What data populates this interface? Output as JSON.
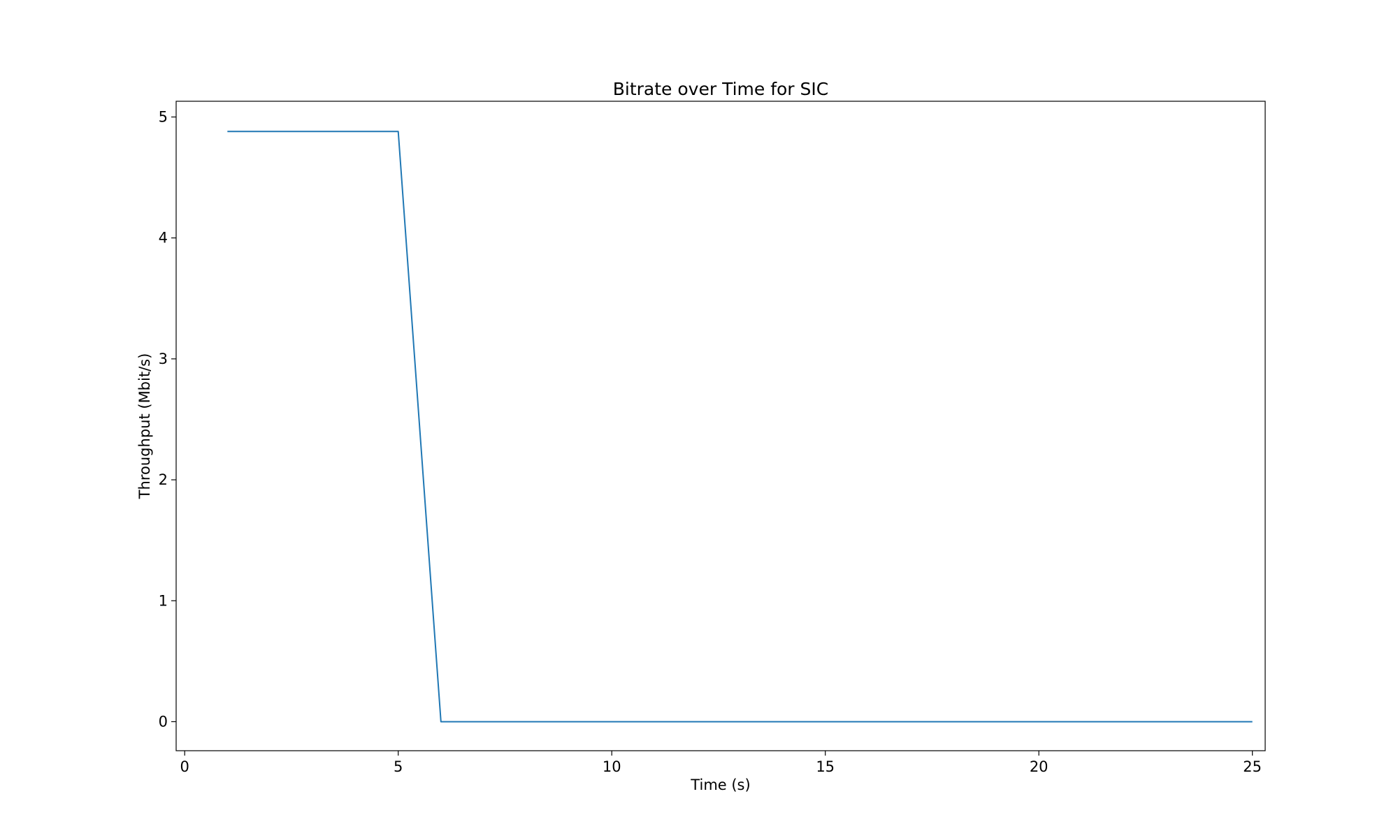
{
  "chart_data": {
    "type": "line",
    "title": "Bitrate over Time for SIC",
    "xlabel": "Time (s)",
    "ylabel": "Throughput (Mbit/s)",
    "xlim": [
      -0.2,
      25.3
    ],
    "ylim": [
      -0.24,
      5.13
    ],
    "xticks": [
      0,
      5,
      10,
      15,
      20,
      25
    ],
    "yticks": [
      0,
      1,
      2,
      3,
      4,
      5
    ],
    "grid": false,
    "series": [
      {
        "color": "#1f77b4",
        "x": [
          1,
          2,
          3,
          4,
          5,
          6,
          7,
          8,
          9,
          10,
          11,
          12,
          13,
          14,
          15,
          16,
          17,
          18,
          19,
          20,
          21,
          22,
          23,
          24,
          25
        ],
        "y": [
          4.88,
          4.88,
          4.88,
          4.88,
          4.88,
          0,
          0,
          0,
          0,
          0,
          0,
          0,
          0,
          0,
          0,
          0,
          0,
          0,
          0,
          0,
          0,
          0,
          0,
          0,
          0
        ]
      }
    ]
  }
}
